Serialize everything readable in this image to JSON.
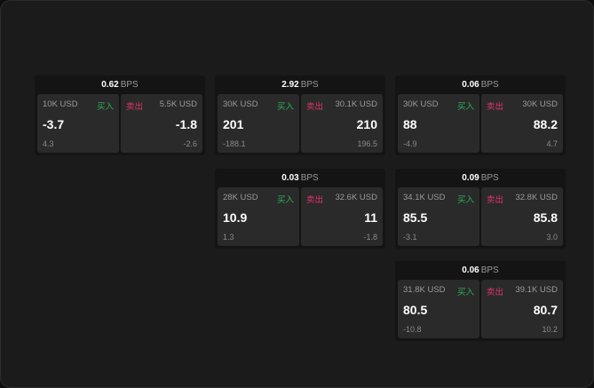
{
  "unit_bps": "BPS",
  "buy_label": "买入",
  "sell_label": "卖出",
  "colors": {
    "buy": "#2fae5c",
    "sell": "#e0356a",
    "background": "#1b1b1b",
    "panel": "#2a2a2a"
  },
  "cards": [
    {
      "spread": "0.62",
      "bid": {
        "size": "10K USD",
        "price": "-3.7",
        "change": "4.3"
      },
      "ask": {
        "size": "5.5K USD",
        "price": "-1.8",
        "change": "-2.6"
      }
    },
    {
      "spread": "2.92",
      "bid": {
        "size": "30K USD",
        "price": "201",
        "change": "-188.1"
      },
      "ask": {
        "size": "30.1K USD",
        "price": "210",
        "change": "196.5"
      }
    },
    {
      "spread": "0.06",
      "bid": {
        "size": "30K USD",
        "price": "88",
        "change": "-4.9"
      },
      "ask": {
        "size": "30K USD",
        "price": "88.2",
        "change": "4.7"
      }
    },
    {
      "spread": "0.03",
      "bid": {
        "size": "28K USD",
        "price": "10.9",
        "change": "1.3"
      },
      "ask": {
        "size": "32.6K USD",
        "price": "11",
        "change": "-1.8"
      }
    },
    {
      "spread": "0.09",
      "bid": {
        "size": "34.1K USD",
        "price": "85.5",
        "change": "-3.1"
      },
      "ask": {
        "size": "32.8K USD",
        "price": "85.8",
        "change": "3.0"
      }
    },
    {
      "spread": "0.06",
      "bid": {
        "size": "31.8K USD",
        "price": "80.5",
        "change": "-10.8"
      },
      "ask": {
        "size": "39.1K USD",
        "price": "80.7",
        "change": "10.2"
      }
    }
  ]
}
